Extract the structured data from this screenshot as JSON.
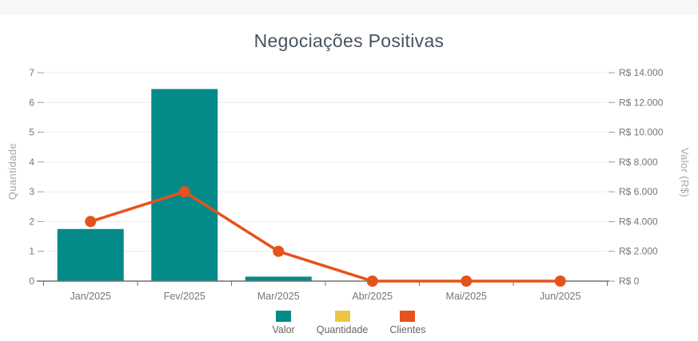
{
  "chart_data": {
    "type": "combo-bar-line",
    "title": "Negociações Positivas",
    "categories": [
      "Jan/2025",
      "Fev/2025",
      "Mar/2025",
      "Abr/2025",
      "Mai/2025",
      "Jun/2025"
    ],
    "axes": {
      "left": {
        "label": "Quantidade",
        "min": 0,
        "max": 7,
        "step": 1,
        "ticks": [
          "0",
          "1",
          "2",
          "3",
          "4",
          "5",
          "6",
          "7"
        ]
      },
      "right": {
        "label": "Valor (R$)",
        "min": 0,
        "max": 14000,
        "step": 2000,
        "ticks": [
          "R$ 0",
          "R$ 2.000",
          "R$ 4.000",
          "R$ 6.000",
          "R$ 8.000",
          "R$ 10.000",
          "R$ 12.000",
          "R$ 14.000"
        ]
      }
    },
    "series": [
      {
        "name": "Valor",
        "type": "bar",
        "axis": "right",
        "color": "#058a8a",
        "values": [
          3500,
          12900,
          300,
          0,
          0,
          0
        ]
      },
      {
        "name": "Quantidade",
        "type": "line",
        "axis": "left",
        "color": "#ecc643",
        "values": []
      },
      {
        "name": "Clientes",
        "type": "line",
        "axis": "left",
        "color": "#e5531c",
        "values": [
          2,
          3,
          1,
          0,
          0,
          0
        ]
      }
    ],
    "grid": true,
    "legend_position": "bottom",
    "style_colors": {
      "gridline": "#ececec",
      "axis_line": "#707070",
      "tick_dash": "#9c9c9c",
      "tick_text": "#767676",
      "axis_title_text": "#a6a6a6",
      "title_text": "#47535f",
      "topbar_bg": "#f7f7f7"
    }
  }
}
